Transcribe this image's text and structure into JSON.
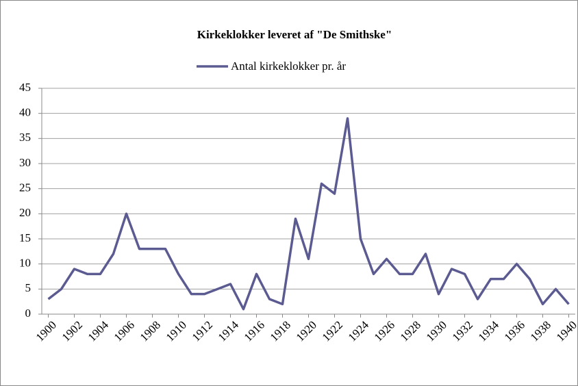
{
  "chart_data": {
    "type": "line",
    "title": "Kirkeklokker leveret af \"De Smithske\"",
    "x": [
      1900,
      1901,
      1902,
      1903,
      1904,
      1905,
      1906,
      1907,
      1908,
      1909,
      1910,
      1911,
      1912,
      1913,
      1914,
      1915,
      1916,
      1917,
      1918,
      1919,
      1920,
      1921,
      1922,
      1923,
      1924,
      1925,
      1926,
      1927,
      1928,
      1929,
      1930,
      1931,
      1932,
      1933,
      1934,
      1935,
      1936,
      1937,
      1938,
      1939,
      1940
    ],
    "series": [
      {
        "name": "Antal kirkeklokker pr. år",
        "color": "#5b5b91",
        "values": [
          3,
          5,
          9,
          8,
          8,
          12,
          20,
          13,
          13,
          13,
          8,
          4,
          4,
          5,
          6,
          1,
          8,
          3,
          2,
          19,
          11,
          26,
          24,
          39,
          15,
          8,
          11,
          8,
          8,
          12,
          4,
          9,
          8,
          3,
          7,
          7,
          10,
          7,
          2,
          5,
          2
        ]
      }
    ],
    "xlim": [
      1899.5,
      1940.5
    ],
    "xticks": [
      1900,
      1902,
      1904,
      1906,
      1908,
      1910,
      1912,
      1914,
      1916,
      1918,
      1920,
      1922,
      1924,
      1926,
      1928,
      1930,
      1932,
      1934,
      1936,
      1938,
      1940
    ],
    "ylim": [
      0,
      45
    ],
    "yticks": [
      0,
      5,
      10,
      15,
      20,
      25,
      30,
      35,
      40,
      45
    ],
    "grid": true,
    "legend": "top"
  }
}
